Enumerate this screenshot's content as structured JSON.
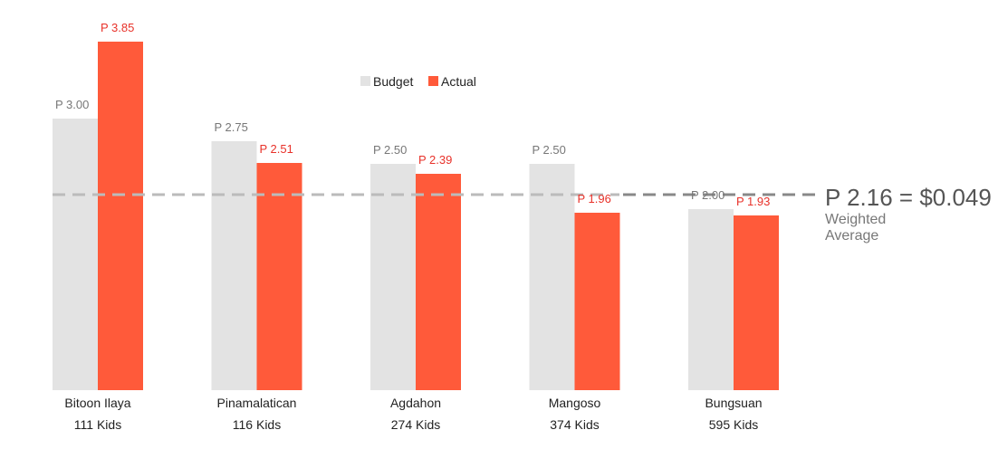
{
  "chart_data": {
    "type": "bar",
    "categories": [
      "Bitoon Ilaya",
      "Pinamalatican",
      "Agdahon",
      "Mangoso",
      "Bungsuan"
    ],
    "subcategories": [
      "111 Kids",
      "116 Kids",
      "274 Kids",
      "374 Kids",
      "595 Kids"
    ],
    "series": [
      {
        "name": "Budget",
        "values": [
          3.0,
          2.75,
          2.5,
          2.5,
          2.0
        ],
        "labels": [
          "P  3.00",
          "P  2.75",
          "P  2.50",
          "P  2.50",
          "P  2.00"
        ]
      },
      {
        "name": "Actual",
        "values": [
          3.85,
          2.51,
          2.39,
          1.96,
          1.93
        ],
        "labels": [
          "P  3.85",
          "P  2.51",
          "P  2.39",
          "P  1.96",
          "P  1.93"
        ]
      }
    ],
    "reference_line": {
      "value": 2.16,
      "style": "dashed"
    },
    "ylim": [
      0,
      4
    ],
    "legend": "top-center",
    "grid": false
  },
  "weighted_average": {
    "value_text": "P 2.16 = $0.049",
    "label_line1": "Weighted",
    "label_line2": "Average"
  },
  "colors": {
    "budget": "#e3e3e3",
    "actual": "#ff5a3a",
    "budget_label": "#777777",
    "actual_label": "#e8322a",
    "reference_line": "#bbbbbb",
    "reference_line_dark": "#888888"
  }
}
